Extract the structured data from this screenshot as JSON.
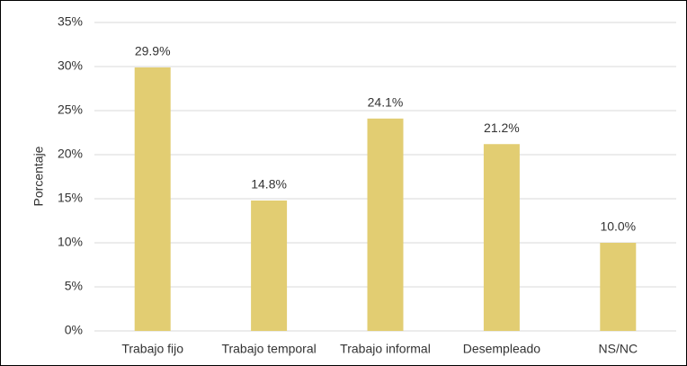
{
  "chart_data": {
    "type": "bar",
    "y_axis_label": "Porcentaje",
    "categories": [
      "Trabajo fijo",
      "Trabajo temporal",
      "Trabajo informal",
      "Desempleado",
      "NS/NC"
    ],
    "values": [
      29.9,
      14.8,
      24.1,
      21.2,
      10.0
    ],
    "value_labels": [
      "29.9%",
      "14.8%",
      "24.1%",
      "21.2%",
      "10.0%"
    ],
    "color": "#e2cd72",
    "ylim": [
      0,
      35
    ],
    "yticks": [
      {
        "value": 0,
        "label": "0%"
      },
      {
        "value": 5,
        "label": "5%"
      },
      {
        "value": 10,
        "label": "10%"
      },
      {
        "value": 15,
        "label": "15%"
      },
      {
        "value": 20,
        "label": "20%"
      },
      {
        "value": 25,
        "label": "25%"
      },
      {
        "value": 30,
        "label": "30%"
      },
      {
        "value": 35,
        "label": "35%"
      }
    ],
    "grid": true
  }
}
